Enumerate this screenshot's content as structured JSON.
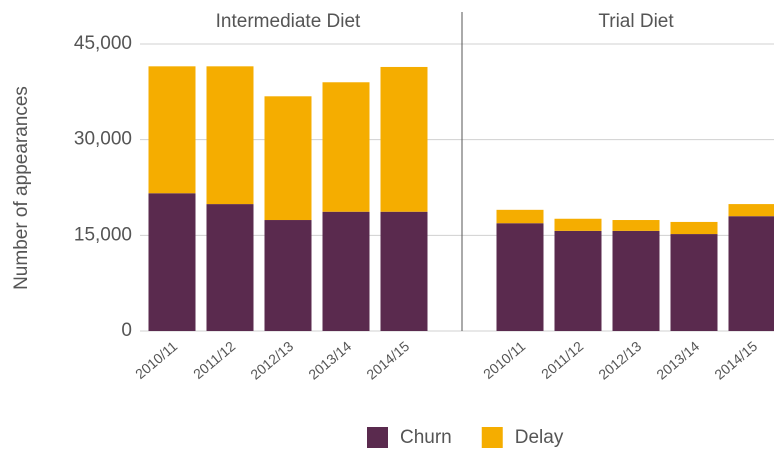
{
  "chart_data": {
    "type": "stacked_bar",
    "y_label": "Number of appearances",
    "group_labels": [
      "Intermediate Diet",
      "Trial Diet"
    ],
    "categories": [
      "2010/11",
      "2011/12",
      "2012/13",
      "2013/14",
      "2014/15",
      null,
      "2010/11",
      "2011/12",
      "2012/13",
      "2013/14",
      "2014/15"
    ],
    "series": [
      {
        "name": "Churn",
        "color": "#5a2a4e",
        "values": [
          21600,
          19900,
          17400,
          18700,
          18700,
          null,
          16900,
          15700,
          15700,
          15200,
          18000
        ]
      },
      {
        "name": "Delay",
        "color": "#f5ad00",
        "values": [
          19900,
          21600,
          19400,
          20300,
          22700,
          null,
          2100,
          1900,
          1700,
          1900,
          1900
        ]
      }
    ],
    "ylim": [
      0,
      45000
    ],
    "yticks": [
      0,
      {
        "value": 15000,
        "label": "15,000"
      },
      {
        "value": 30000,
        "label": "30,000"
      },
      {
        "value": 45000,
        "label": "45,000"
      }
    ],
    "grid": true,
    "legend": "bottom"
  }
}
